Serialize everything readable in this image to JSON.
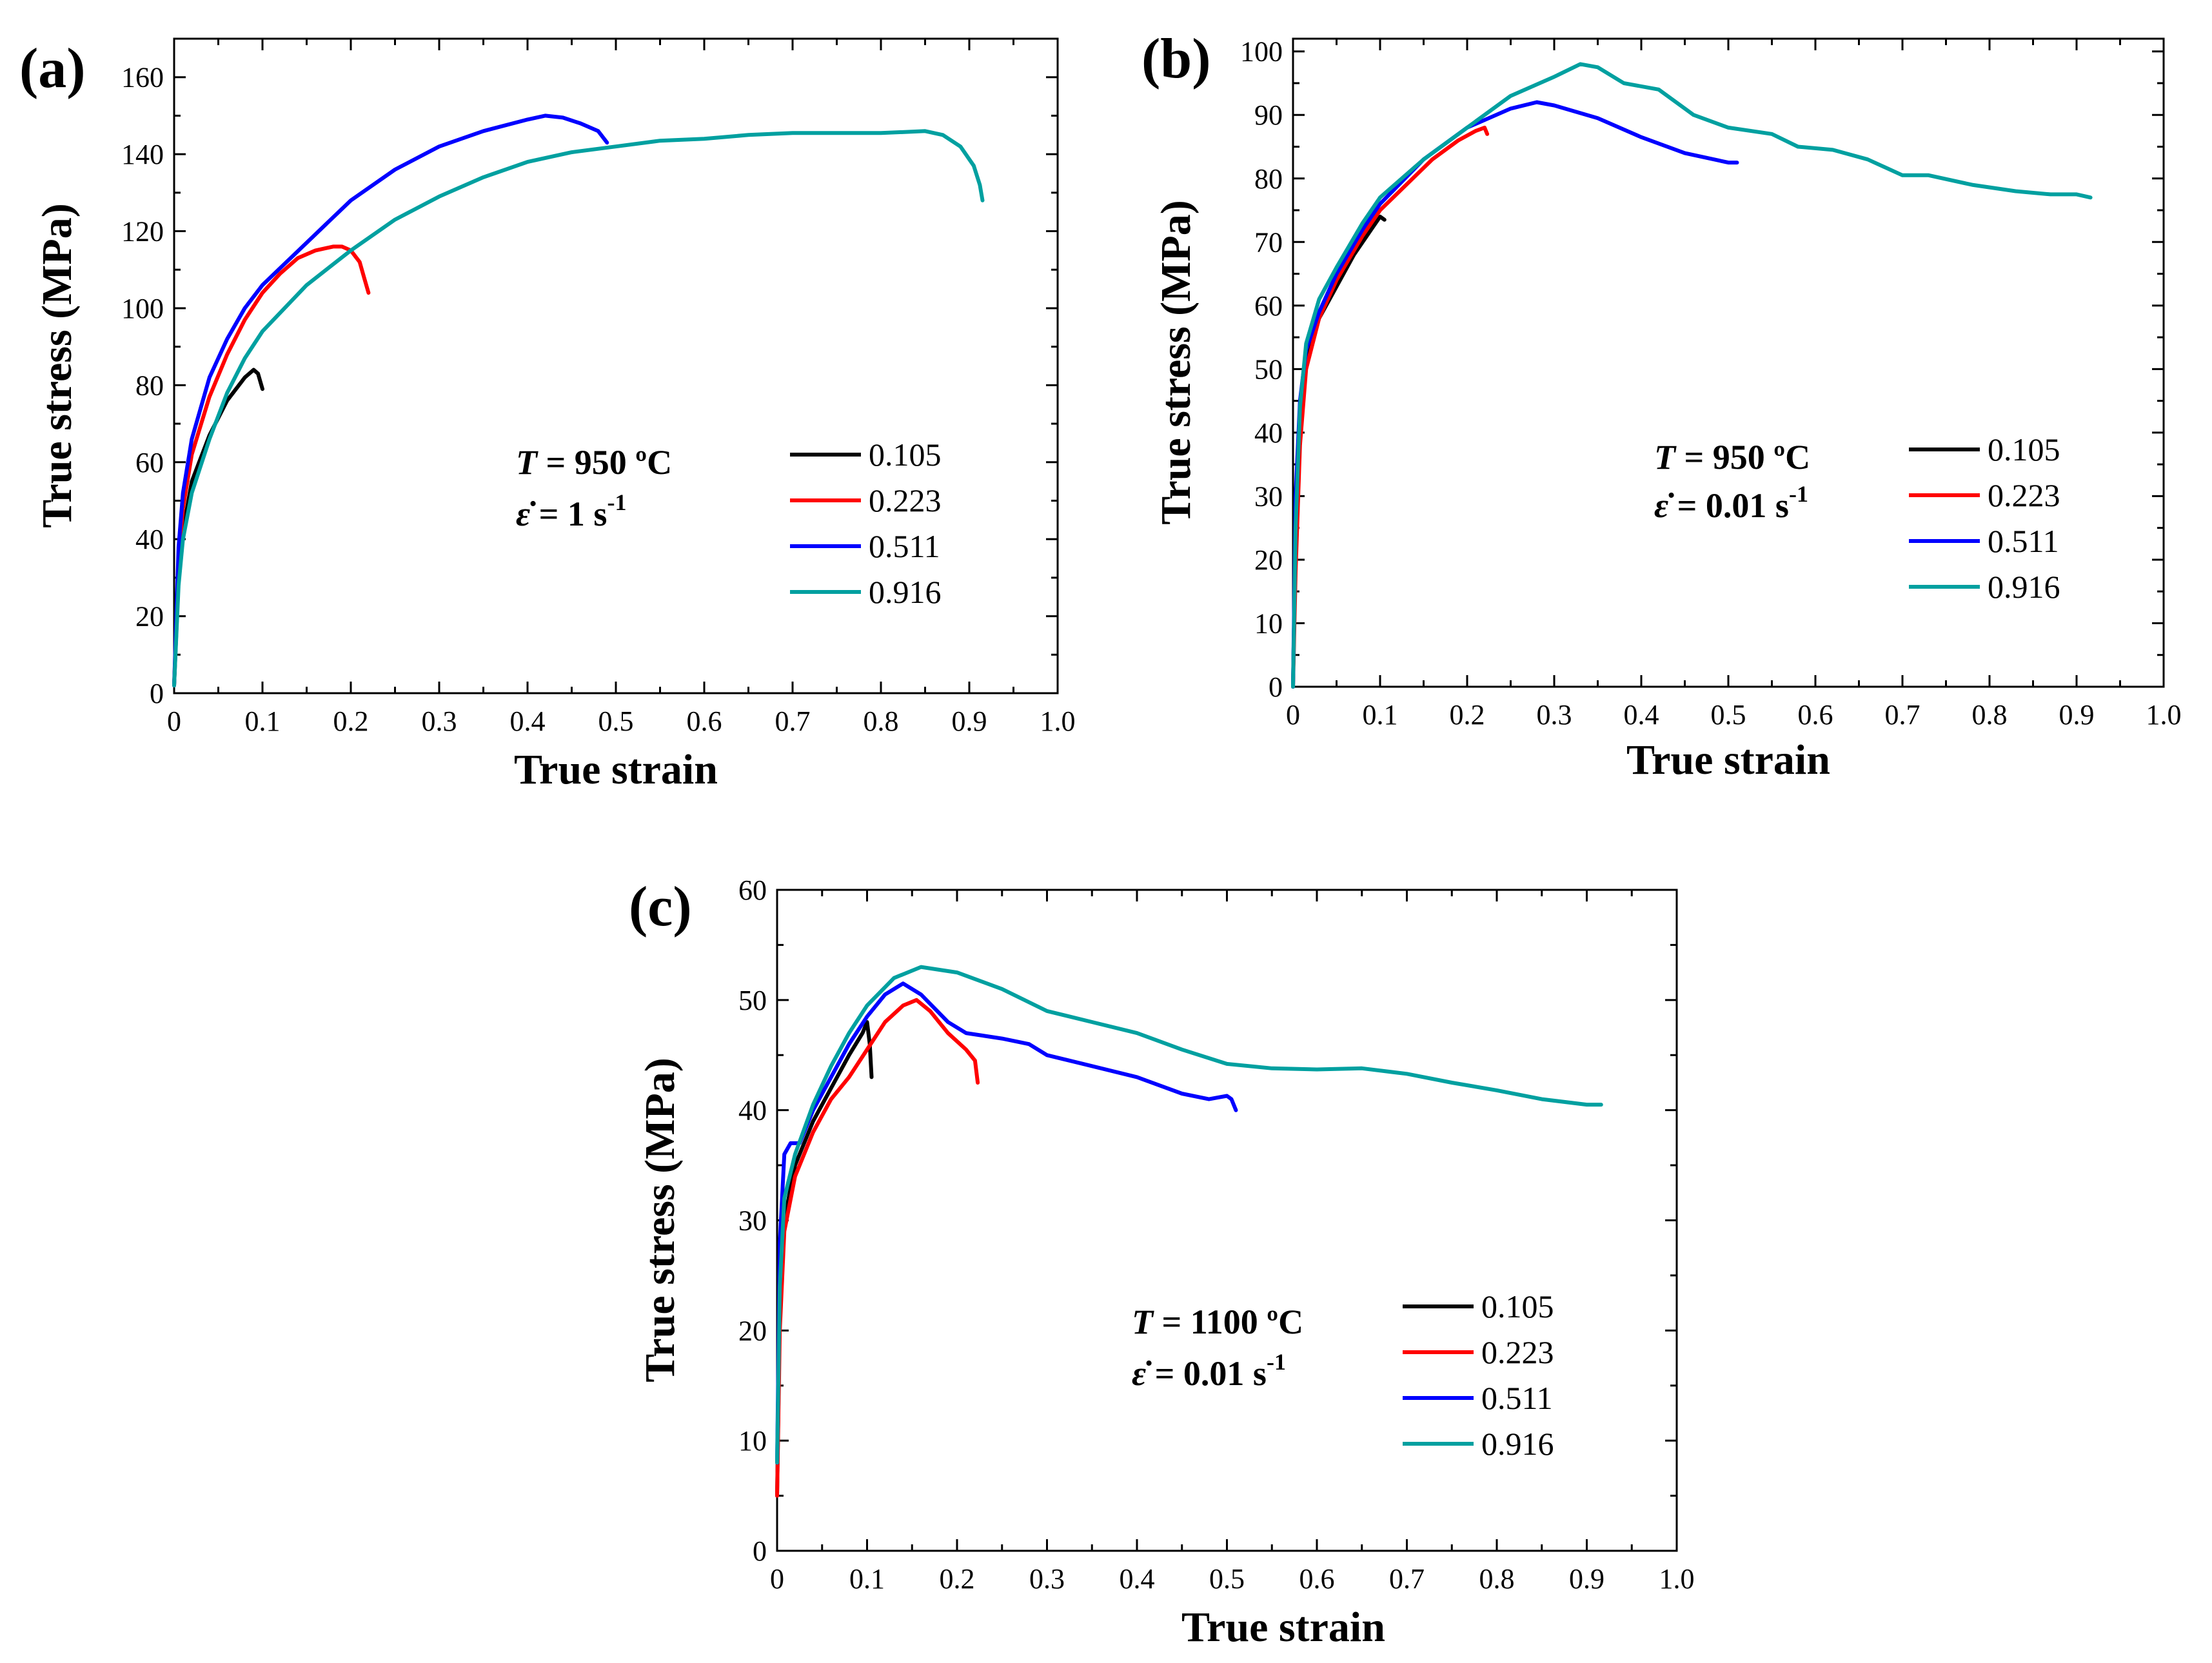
{
  "chart_data": [
    {
      "type": "line",
      "panel_label": "(a)",
      "xlabel": "True strain",
      "ylabel": "True stress (MPa)",
      "xlim": [
        0,
        1.0
      ],
      "ylim": [
        0,
        170
      ],
      "x_ticks": [
        0,
        0.1,
        0.2,
        0.3,
        0.4,
        0.5,
        0.6,
        0.7,
        0.8,
        0.9,
        1.0
      ],
      "x_tick_labels": [
        "0",
        "0.1",
        "0.2",
        "0.3",
        "0.4",
        "0.5",
        "0.6",
        "0.7",
        "0.8",
        "0.9",
        "1.0"
      ],
      "y_ticks": [
        0,
        20,
        40,
        60,
        80,
        100,
        120,
        140,
        160
      ],
      "y_tick_labels": [
        "0",
        "20",
        "40",
        "60",
        "80",
        "100",
        "120",
        "140",
        "160"
      ],
      "annotation": {
        "temp_label": "T",
        "temp_value": " = 950 ºC",
        "rate_label": "ε̇",
        "rate_value": " = 1 s",
        "rate_exp": "-1"
      },
      "series": [
        {
          "name": "0.105",
          "color": "#000000",
          "points": [
            [
              0,
              2
            ],
            [
              0.005,
              30
            ],
            [
              0.01,
              42
            ],
            [
              0.02,
              55
            ],
            [
              0.04,
              67
            ],
            [
              0.06,
              76
            ],
            [
              0.08,
              82
            ],
            [
              0.09,
              84
            ],
            [
              0.095,
              83
            ],
            [
              0.1,
              79
            ]
          ]
        },
        {
          "name": "0.223",
          "color": "#ff0000",
          "points": [
            [
              0,
              2
            ],
            [
              0.005,
              35
            ],
            [
              0.01,
              48
            ],
            [
              0.02,
              62
            ],
            [
              0.04,
              77
            ],
            [
              0.06,
              88
            ],
            [
              0.08,
              97
            ],
            [
              0.1,
              104
            ],
            [
              0.12,
              109
            ],
            [
              0.14,
              113
            ],
            [
              0.16,
              115
            ],
            [
              0.18,
              116
            ],
            [
              0.19,
              116
            ],
            [
              0.2,
              115
            ],
            [
              0.21,
              112
            ],
            [
              0.215,
              108
            ],
            [
              0.22,
              104
            ]
          ]
        },
        {
          "name": "0.511",
          "color": "#0000ff",
          "points": [
            [
              0,
              2
            ],
            [
              0.005,
              38
            ],
            [
              0.01,
              52
            ],
            [
              0.02,
              66
            ],
            [
              0.04,
              82
            ],
            [
              0.06,
              92
            ],
            [
              0.08,
              100
            ],
            [
              0.1,
              106
            ],
            [
              0.15,
              117
            ],
            [
              0.2,
              128
            ],
            [
              0.25,
              136
            ],
            [
              0.3,
              142
            ],
            [
              0.35,
              146
            ],
            [
              0.4,
              149
            ],
            [
              0.42,
              150
            ],
            [
              0.44,
              149.5
            ],
            [
              0.46,
              148
            ],
            [
              0.48,
              146
            ],
            [
              0.49,
              143
            ]
          ]
        },
        {
          "name": "0.916",
          "color": "#00a0a0",
          "points": [
            [
              0,
              2
            ],
            [
              0.005,
              28
            ],
            [
              0.01,
              40
            ],
            [
              0.02,
              52
            ],
            [
              0.04,
              66
            ],
            [
              0.06,
              78
            ],
            [
              0.08,
              87
            ],
            [
              0.1,
              94
            ],
            [
              0.15,
              106
            ],
            [
              0.2,
              115
            ],
            [
              0.25,
              123
            ],
            [
              0.3,
              129
            ],
            [
              0.35,
              134
            ],
            [
              0.4,
              138
            ],
            [
              0.45,
              140.5
            ],
            [
              0.5,
              142
            ],
            [
              0.55,
              143.5
            ],
            [
              0.6,
              144
            ],
            [
              0.65,
              145
            ],
            [
              0.7,
              145.5
            ],
            [
              0.75,
              145.5
            ],
            [
              0.8,
              145.5
            ],
            [
              0.85,
              146
            ],
            [
              0.87,
              145
            ],
            [
              0.89,
              142
            ],
            [
              0.905,
              137
            ],
            [
              0.912,
              132
            ],
            [
              0.915,
              128
            ]
          ]
        }
      ]
    },
    {
      "type": "line",
      "panel_label": "(b)",
      "xlabel": "True strain",
      "ylabel": "True stress (MPa)",
      "xlim": [
        0,
        1.0
      ],
      "ylim": [
        0,
        102
      ],
      "x_ticks": [
        0,
        0.1,
        0.2,
        0.3,
        0.4,
        0.5,
        0.6,
        0.7,
        0.8,
        0.9,
        1.0
      ],
      "x_tick_labels": [
        "0",
        "0.1",
        "0.2",
        "0.3",
        "0.4",
        "0.5",
        "0.6",
        "0.7",
        "0.8",
        "0.9",
        "1.0"
      ],
      "y_ticks": [
        0,
        10,
        20,
        30,
        40,
        50,
        60,
        70,
        80,
        90,
        100
      ],
      "y_tick_labels": [
        "0",
        "10",
        "20",
        "30",
        "40",
        "50",
        "60",
        "70",
        "80",
        "90",
        "100"
      ],
      "annotation": {
        "temp_label": "T",
        "temp_value": " = 950 ºC",
        "rate_label": "ε̇",
        "rate_value": " = 0.01 s",
        "rate_exp": "-1"
      },
      "series": [
        {
          "name": "0.105",
          "color": "#000000",
          "points": [
            [
              0,
              0
            ],
            [
              0.003,
              25
            ],
            [
              0.008,
              42
            ],
            [
              0.015,
              52
            ],
            [
              0.03,
              58
            ],
            [
              0.05,
              63
            ],
            [
              0.07,
              68
            ],
            [
              0.09,
              72
            ],
            [
              0.1,
              74
            ],
            [
              0.105,
              73.5
            ]
          ]
        },
        {
          "name": "0.223",
          "color": "#ff0000",
          "points": [
            [
              0,
              0
            ],
            [
              0.003,
              18
            ],
            [
              0.008,
              38
            ],
            [
              0.015,
              50
            ],
            [
              0.03,
              58
            ],
            [
              0.05,
              64
            ],
            [
              0.08,
              71
            ],
            [
              0.1,
              75
            ],
            [
              0.13,
              79
            ],
            [
              0.16,
              83
            ],
            [
              0.19,
              86
            ],
            [
              0.21,
              87.5
            ],
            [
              0.22,
              88
            ],
            [
              0.223,
              87
            ]
          ]
        },
        {
          "name": "0.511",
          "color": "#0000ff",
          "points": [
            [
              0,
              0
            ],
            [
              0.003,
              30
            ],
            [
              0.008,
              45
            ],
            [
              0.015,
              53
            ],
            [
              0.03,
              59
            ],
            [
              0.05,
              65
            ],
            [
              0.08,
              72
            ],
            [
              0.1,
              76
            ],
            [
              0.15,
              83
            ],
            [
              0.2,
              88
            ],
            [
              0.25,
              91
            ],
            [
              0.28,
              92
            ],
            [
              0.3,
              91.5
            ],
            [
              0.35,
              89.5
            ],
            [
              0.4,
              86.5
            ],
            [
              0.45,
              84
            ],
            [
              0.5,
              82.5
            ],
            [
              0.51,
              82.5
            ]
          ]
        },
        {
          "name": "0.916",
          "color": "#00a0a0",
          "points": [
            [
              0,
              0
            ],
            [
              0.003,
              25
            ],
            [
              0.008,
              44
            ],
            [
              0.015,
              54
            ],
            [
              0.03,
              61
            ],
            [
              0.05,
              66
            ],
            [
              0.08,
              73
            ],
            [
              0.1,
              77
            ],
            [
              0.15,
              83
            ],
            [
              0.2,
              88
            ],
            [
              0.25,
              93
            ],
            [
              0.3,
              96
            ],
            [
              0.33,
              98
            ],
            [
              0.35,
              97.5
            ],
            [
              0.38,
              95
            ],
            [
              0.42,
              94
            ],
            [
              0.46,
              90
            ],
            [
              0.5,
              88
            ],
            [
              0.55,
              87
            ],
            [
              0.58,
              85
            ],
            [
              0.62,
              84.5
            ],
            [
              0.66,
              83
            ],
            [
              0.7,
              80.5
            ],
            [
              0.73,
              80.5
            ],
            [
              0.78,
              79
            ],
            [
              0.83,
              78
            ],
            [
              0.87,
              77.5
            ],
            [
              0.9,
              77.5
            ],
            [
              0.916,
              77
            ]
          ]
        }
      ]
    },
    {
      "type": "line",
      "panel_label": "(c)",
      "xlabel": "True strain",
      "ylabel": "True stress (MPa)",
      "xlim": [
        0,
        1.0
      ],
      "ylim": [
        0,
        60
      ],
      "x_ticks": [
        0,
        0.1,
        0.2,
        0.3,
        0.4,
        0.5,
        0.6,
        0.7,
        0.8,
        0.9,
        1.0
      ],
      "x_tick_labels": [
        "0",
        "0.1",
        "0.2",
        "0.3",
        "0.4",
        "0.5",
        "0.6",
        "0.7",
        "0.8",
        "0.9",
        "1.0"
      ],
      "y_ticks": [
        0,
        10,
        20,
        30,
        40,
        50,
        60
      ],
      "y_tick_labels": [
        "0",
        "10",
        "20",
        "30",
        "40",
        "50",
        "60"
      ],
      "annotation": {
        "temp_label": "T",
        "temp_value": " = 1100 ºC",
        "rate_label": "ε̇",
        "rate_value": " = 0.01 s",
        "rate_exp": "-1"
      },
      "series": [
        {
          "name": "0.105",
          "color": "#000000",
          "points": [
            [
              0,
              5
            ],
            [
              0.003,
              22
            ],
            [
              0.008,
              30
            ],
            [
              0.02,
              35
            ],
            [
              0.04,
              39
            ],
            [
              0.06,
              42
            ],
            [
              0.08,
              45
            ],
            [
              0.095,
              47
            ],
            [
              0.1,
              48
            ],
            [
              0.103,
              46
            ],
            [
              0.105,
              43
            ]
          ]
        },
        {
          "name": "0.223",
          "color": "#ff0000",
          "points": [
            [
              0,
              5
            ],
            [
              0.003,
              20
            ],
            [
              0.008,
              29
            ],
            [
              0.02,
              34
            ],
            [
              0.04,
              38
            ],
            [
              0.06,
              41
            ],
            [
              0.08,
              43
            ],
            [
              0.1,
              45.5
            ],
            [
              0.12,
              48
            ],
            [
              0.14,
              49.5
            ],
            [
              0.155,
              50
            ],
            [
              0.17,
              49
            ],
            [
              0.19,
              47
            ],
            [
              0.21,
              45.5
            ],
            [
              0.22,
              44.5
            ],
            [
              0.223,
              42.5
            ]
          ]
        },
        {
          "name": "0.511",
          "color": "#0000ff",
          "points": [
            [
              0,
              8
            ],
            [
              0.003,
              28
            ],
            [
              0.008,
              36
            ],
            [
              0.015,
              37
            ],
            [
              0.025,
              37
            ],
            [
              0.04,
              40
            ],
            [
              0.06,
              43
            ],
            [
              0.08,
              46
            ],
            [
              0.1,
              48.5
            ],
            [
              0.12,
              50.5
            ],
            [
              0.14,
              51.5
            ],
            [
              0.16,
              50.5
            ],
            [
              0.19,
              48
            ],
            [
              0.21,
              47
            ],
            [
              0.25,
              46.5
            ],
            [
              0.28,
              46
            ],
            [
              0.3,
              45
            ],
            [
              0.35,
              44
            ],
            [
              0.4,
              43
            ],
            [
              0.45,
              41.5
            ],
            [
              0.48,
              41
            ],
            [
              0.5,
              41.3
            ],
            [
              0.505,
              41
            ],
            [
              0.51,
              40
            ]
          ]
        },
        {
          "name": "0.916",
          "color": "#00a0a0",
          "points": [
            [
              0,
              8
            ],
            [
              0.003,
              24
            ],
            [
              0.008,
              32
            ],
            [
              0.02,
              36
            ],
            [
              0.04,
              40.5
            ],
            [
              0.06,
              44
            ],
            [
              0.08,
              47
            ],
            [
              0.1,
              49.5
            ],
            [
              0.13,
              52
            ],
            [
              0.16,
              53
            ],
            [
              0.2,
              52.5
            ],
            [
              0.25,
              51
            ],
            [
              0.3,
              49
            ],
            [
              0.35,
              48
            ],
            [
              0.4,
              47
            ],
            [
              0.45,
              45.5
            ],
            [
              0.5,
              44.2
            ],
            [
              0.55,
              43.8
            ],
            [
              0.6,
              43.7
            ],
            [
              0.65,
              43.8
            ],
            [
              0.7,
              43.3
            ],
            [
              0.75,
              42.5
            ],
            [
              0.8,
              41.8
            ],
            [
              0.85,
              41
            ],
            [
              0.9,
              40.5
            ],
            [
              0.916,
              40.5
            ]
          ]
        }
      ]
    }
  ]
}
